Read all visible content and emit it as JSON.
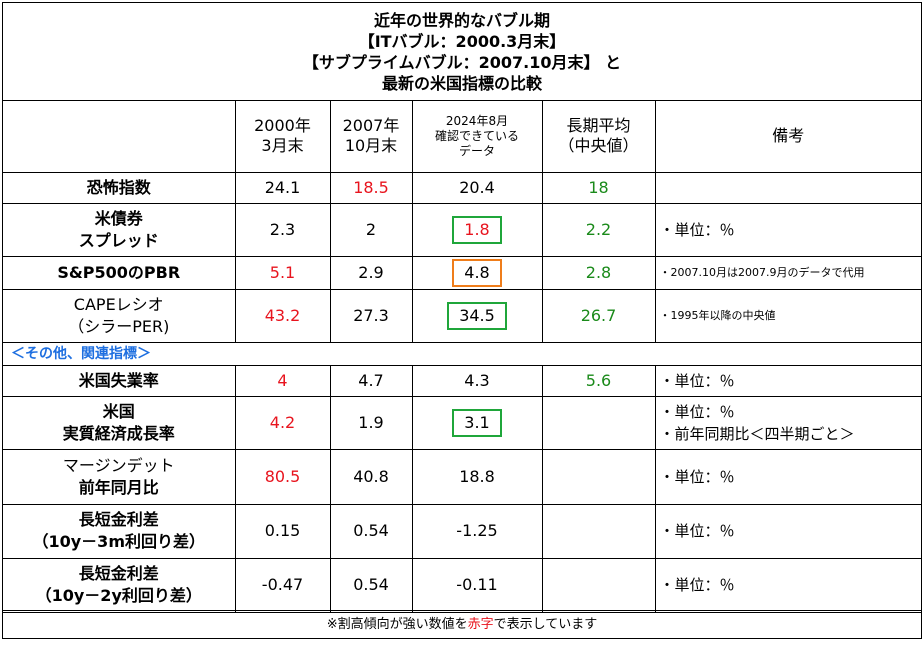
{
  "title_lines": [
    "近年の世界的なバブル期",
    "【ITバブル：2000.3月末】",
    "【サブプライムバブル：2007.10月末】 と",
    "最新の米国指標の比較"
  ],
  "headers": {
    "col1": [
      "2000年",
      "3月末"
    ],
    "col2": [
      "2007年",
      "10月末"
    ],
    "col3": [
      "2024年8月",
      "確認できている",
      "データ"
    ],
    "col4": [
      "長期平均",
      "（中央値）"
    ],
    "col5": "備考"
  },
  "rows": [
    {
      "label": [
        "恐怖指数"
      ],
      "v2000": "24.1",
      "v2007": "18.5",
      "v2024": "20.4",
      "avg": "18",
      "note": ""
    },
    {
      "label": [
        "米債券",
        "スプレッド"
      ],
      "v2000": "2.3",
      "v2007": "2",
      "v2024": "1.8",
      "avg": "2.2",
      "note": "・単位：％"
    },
    {
      "label": [
        "S&P500のPBR"
      ],
      "v2000": "5.1",
      "v2007": "2.9",
      "v2024": "4.8",
      "avg": "2.8",
      "note": "・2007.10月は2007.9月のデータで代用"
    },
    {
      "label": [
        "CAPEレシオ",
        "（シラーPER)"
      ],
      "v2000": "43.2",
      "v2007": "27.3",
      "v2024": "34.5",
      "avg": "26.7",
      "note": "・1995年以降の中央値"
    },
    {
      "label": [
        "米国失業率"
      ],
      "v2000": "4",
      "v2007": "4.7",
      "v2024": "4.3",
      "avg": "5.6",
      "note": "・単位：％"
    },
    {
      "label": [
        "米国",
        "実質経済成長率"
      ],
      "v2000": "4.2",
      "v2007": "1.9",
      "v2024": "3.1",
      "avg": "",
      "note": [
        "・単位：％",
        "・前年同期比＜四半期ごと＞"
      ]
    },
    {
      "label": [
        "マージンデット",
        "前年同月比"
      ],
      "v2000": "80.5",
      "v2007": "40.8",
      "v2024": "18.8",
      "avg": "",
      "note": "・単位：％"
    },
    {
      "label": [
        "長短金利差",
        "（10y－3m利回り差）"
      ],
      "v2000": "0.15",
      "v2007": "0.54",
      "v2024": "-1.25",
      "avg": "",
      "note": "・単位：％"
    },
    {
      "label": [
        "長短金利差",
        "（10y－2y利回り差）"
      ],
      "v2000": "-0.47",
      "v2007": "0.54",
      "v2024": "-0.11",
      "avg": "",
      "note": "・単位：％"
    }
  ],
  "section_label": "＜その他、関連指標＞",
  "footer": {
    "before": "※割高傾向が強い数値を",
    "highlight": "赤字",
    "after": "で表示しています"
  },
  "colors": {
    "red": "#e8141e",
    "green": "#1a8a1a",
    "blue": "#1e6fe0",
    "box_green": "#1fa63a",
    "box_orange": "#ef7d1a"
  }
}
